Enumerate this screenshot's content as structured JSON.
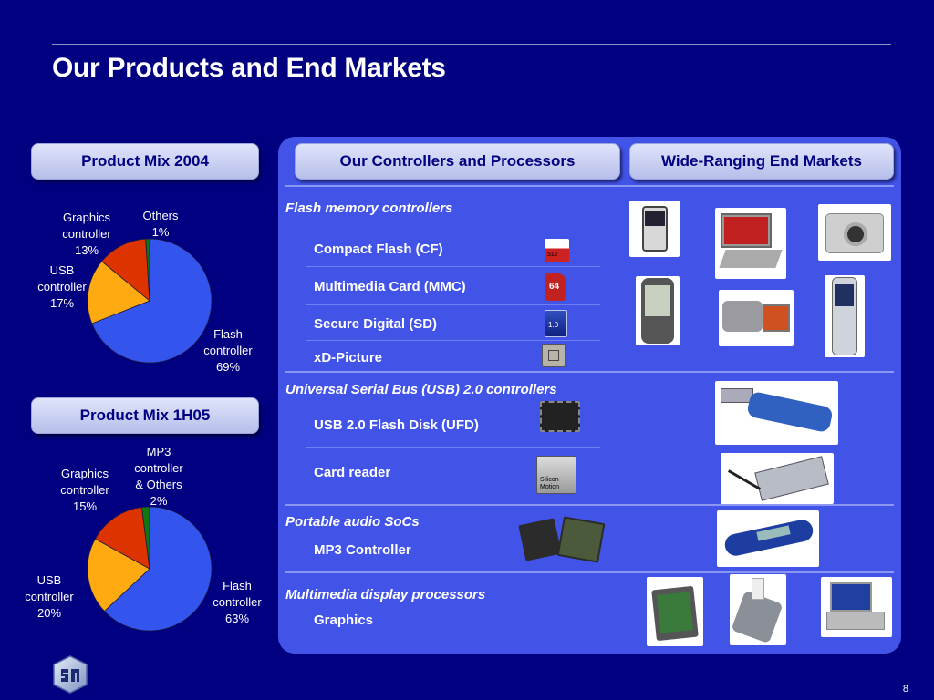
{
  "title": "Our Products and End Markets",
  "headers": {
    "mix_2004": "Product Mix 2004",
    "mix_1h05": "Product Mix 1H05",
    "controllers": "Our Controllers and Processors",
    "markets": "Wide-Ranging End Markets"
  },
  "chart_data": [
    {
      "type": "pie",
      "title": "Product Mix 2004",
      "labels": [
        "Flash controller",
        "USB controller",
        "Graphics controller",
        "Others"
      ],
      "values": [
        69,
        17,
        13,
        1
      ],
      "colors": [
        "#3355ee",
        "#ffaa11",
        "#dd3300",
        "#117711"
      ],
      "display": [
        "Flash\ncontroller\n69%",
        "USB\ncontroller\n17%",
        "Graphics\ncontroller\n13%",
        "Others\n1%"
      ]
    },
    {
      "type": "pie",
      "title": "Product Mix 1H05",
      "labels": [
        "Flash controller",
        "USB controller",
        "Graphics controller",
        "MP3 controller & Others"
      ],
      "values": [
        63,
        20,
        15,
        2
      ],
      "colors": [
        "#3355ee",
        "#ffaa11",
        "#dd3300",
        "#117711"
      ],
      "display": [
        "Flash\ncontroller\n63%",
        "USB\ncontroller\n20%",
        "Graphics\ncontroller\n15%",
        "MP3\ncontroller\n& Others\n2%"
      ]
    }
  ],
  "categories": {
    "flash": "Flash memory controllers",
    "usb": "Universal Serial Bus (USB) 2.0 controllers",
    "audio": "Portable audio SoCs",
    "display": "Multimedia display processors"
  },
  "items": {
    "cf": "Compact Flash (CF)",
    "mmc": "Multimedia Card (MMC)",
    "sd": "Secure Digital (SD)",
    "xd": "xD-Picture",
    "ufd": "USB 2.0 Flash Disk (UFD)",
    "reader": "Card reader",
    "mp3": "MP3 Controller",
    "graphics": "Graphics"
  },
  "chips": {
    "cf_label": "512",
    "mmc_label": "64",
    "sd_label": "1.0",
    "silicon_motion": "Silicon\nMotion"
  },
  "page_number": "8",
  "colors": {
    "background": "#000080",
    "panel": "#4253e7",
    "header_text": "#000080"
  }
}
